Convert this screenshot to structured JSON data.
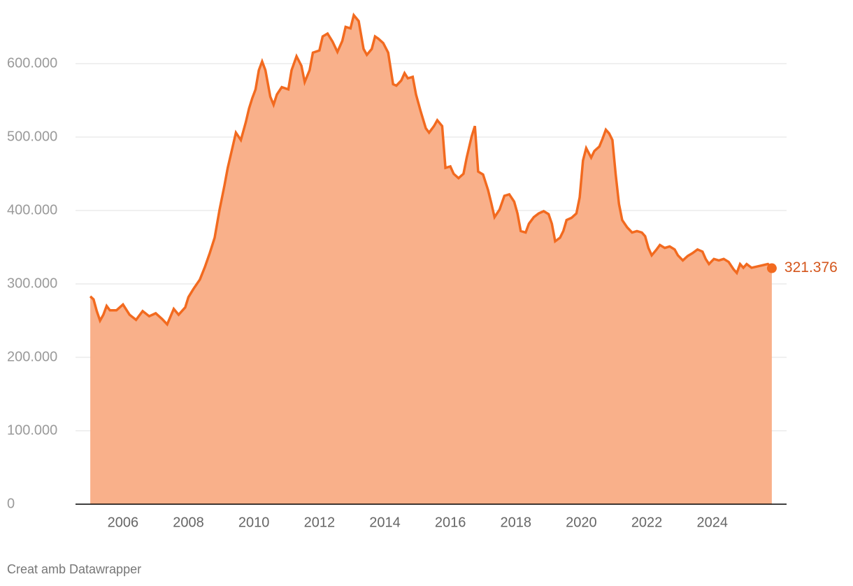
{
  "chart_data": {
    "type": "area",
    "credit": "Creat amb Datawrapper",
    "xlim": [
      2004.55,
      2026.27
    ],
    "ylim": [
      0,
      680000
    ],
    "xticks": [
      2006,
      2008,
      2010,
      2012,
      2014,
      2016,
      2018,
      2020,
      2022,
      2024
    ],
    "yticks": [
      0,
      {
        "value": 100000,
        "label": "100.000"
      },
      {
        "value": 200000,
        "label": "200.000"
      },
      {
        "value": 300000,
        "label": "300.000"
      },
      {
        "value": 400000,
        "label": "400.000"
      },
      {
        "value": 500000,
        "label": "500.000"
      },
      {
        "value": 600000,
        "label": "600.000"
      }
    ],
    "grid": true,
    "line_color": "#f26a1f",
    "fill_color": "#f9b08a",
    "label_color": "#d4561c",
    "x": [
      2005.0,
      2005.1,
      2005.2,
      2005.3,
      2005.4,
      2005.5,
      2005.6,
      2005.8,
      2006.0,
      2006.2,
      2006.4,
      2006.6,
      2006.8,
      2007.0,
      2007.2,
      2007.35,
      2007.55,
      2007.7,
      2007.9,
      2008.0,
      2008.15,
      2008.35,
      2008.5,
      2008.65,
      2008.8,
      2008.95,
      2009.1,
      2009.2,
      2009.35,
      2009.45,
      2009.6,
      2009.75,
      2009.85,
      2009.95,
      2010.05,
      2010.15,
      2010.25,
      2010.35,
      2010.5,
      2010.6,
      2010.7,
      2010.85,
      2011.05,
      2011.15,
      2011.3,
      2011.45,
      2011.55,
      2011.7,
      2011.8,
      2012.0,
      2012.1,
      2012.25,
      2012.4,
      2012.55,
      2012.7,
      2012.8,
      2012.95,
      2013.05,
      2013.2,
      2013.35,
      2013.45,
      2013.6,
      2013.7,
      2013.8,
      2013.95,
      2014.1,
      2014.25,
      2014.35,
      2014.5,
      2014.6,
      2014.7,
      2014.85,
      2014.95,
      2015.1,
      2015.25,
      2015.35,
      2015.5,
      2015.6,
      2015.75,
      2015.85,
      2016.0,
      2016.1,
      2016.25,
      2016.4,
      2016.5,
      2016.65,
      2016.75,
      2016.85,
      2017.0,
      2017.15,
      2017.25,
      2017.35,
      2017.5,
      2017.65,
      2017.8,
      2017.95,
      2018.05,
      2018.15,
      2018.3,
      2018.4,
      2018.55,
      2018.7,
      2018.85,
      2019.0,
      2019.1,
      2019.2,
      2019.35,
      2019.45,
      2019.55,
      2019.7,
      2019.85,
      2019.95,
      2020.05,
      2020.15,
      2020.3,
      2020.4,
      2020.55,
      2020.65,
      2020.75,
      2020.85,
      2020.95,
      2021.05,
      2021.15,
      2021.25,
      2021.4,
      2021.55,
      2021.7,
      2021.85,
      2021.95,
      2022.05,
      2022.15,
      2022.3,
      2022.4,
      2022.55,
      2022.7,
      2022.85,
      2022.95,
      2023.1,
      2023.25,
      2023.4,
      2023.55,
      2023.7,
      2023.8,
      2023.9,
      2024.05,
      2024.2,
      2024.35,
      2024.5,
      2024.65,
      2024.75,
      2024.85,
      2024.95,
      2025.05,
      2025.2,
      2025.7,
      2025.82
    ],
    "values": [
      283000,
      279000,
      263000,
      250000,
      258000,
      270000,
      264000,
      264000,
      272000,
      258000,
      251000,
      263000,
      256000,
      260000,
      252000,
      245000,
      266000,
      258000,
      268000,
      282000,
      293000,
      306000,
      323000,
      342000,
      363000,
      401000,
      434000,
      458000,
      487000,
      506000,
      496000,
      520000,
      539000,
      553000,
      565000,
      591000,
      603000,
      591000,
      555000,
      544000,
      558000,
      568000,
      565000,
      591000,
      610000,
      597000,
      575000,
      591000,
      615000,
      618000,
      637000,
      641000,
      630000,
      616000,
      631000,
      650000,
      648000,
      666000,
      658000,
      620000,
      612000,
      620000,
      637000,
      634000,
      628000,
      615000,
      572000,
      570000,
      577000,
      587000,
      580000,
      582000,
      558000,
      534000,
      512000,
      506000,
      515000,
      523000,
      515000,
      458000,
      460000,
      450000,
      444000,
      450000,
      472000,
      501000,
      515000,
      453000,
      449000,
      428000,
      410000,
      391000,
      401000,
      420000,
      422000,
      412000,
      396000,
      372000,
      370000,
      382000,
      391000,
      396000,
      399000,
      395000,
      382000,
      358000,
      363000,
      372000,
      387000,
      390000,
      396000,
      418000,
      468000,
      485000,
      472000,
      481000,
      487000,
      498000,
      510000,
      505000,
      496000,
      449000,
      409000,
      387000,
      377000,
      370000,
      372000,
      370000,
      365000,
      349000,
      339000,
      347000,
      353000,
      349000,
      351000,
      347000,
      339000,
      332000,
      338000,
      342000,
      347000,
      344000,
      334000,
      327000,
      334000,
      332000,
      334000,
      330000,
      320000,
      315000,
      327000,
      322000,
      327000,
      322000,
      327000,
      321376
    ],
    "value_labels": [
      null,
      null,
      null,
      null,
      null,
      null,
      null,
      null,
      null,
      null,
      null,
      null,
      null,
      null,
      null,
      null,
      null,
      null,
      null,
      null,
      null,
      null,
      null,
      null,
      null,
      null,
      null,
      null,
      null,
      null,
      null,
      null,
      null,
      null,
      null,
      null,
      null,
      null,
      null,
      null,
      null,
      null,
      null,
      null,
      null,
      null,
      null,
      null,
      null,
      null,
      null,
      null,
      null,
      null,
      null,
      null,
      null,
      null,
      null,
      null,
      null,
      null,
      null,
      null,
      null,
      null,
      null,
      null,
      null,
      null,
      null,
      null,
      null,
      null,
      null,
      null,
      null,
      null,
      null,
      null,
      null,
      null,
      null,
      null,
      null,
      null,
      null,
      null,
      null,
      null,
      null,
      null,
      null,
      null,
      null,
      null,
      null,
      null,
      null,
      null,
      null,
      null,
      null,
      null,
      null,
      null,
      null,
      null,
      null,
      null,
      null,
      null,
      null,
      null,
      null,
      null,
      null,
      null,
      null,
      null,
      null,
      null,
      null,
      null,
      null,
      null,
      null,
      null,
      null,
      null,
      null,
      null,
      null,
      null,
      null,
      null,
      null,
      null,
      null,
      null,
      null,
      null,
      null,
      null,
      null,
      null,
      null,
      null,
      null,
      null,
      null,
      null,
      null,
      null,
      null,
      "321.376"
    ]
  }
}
